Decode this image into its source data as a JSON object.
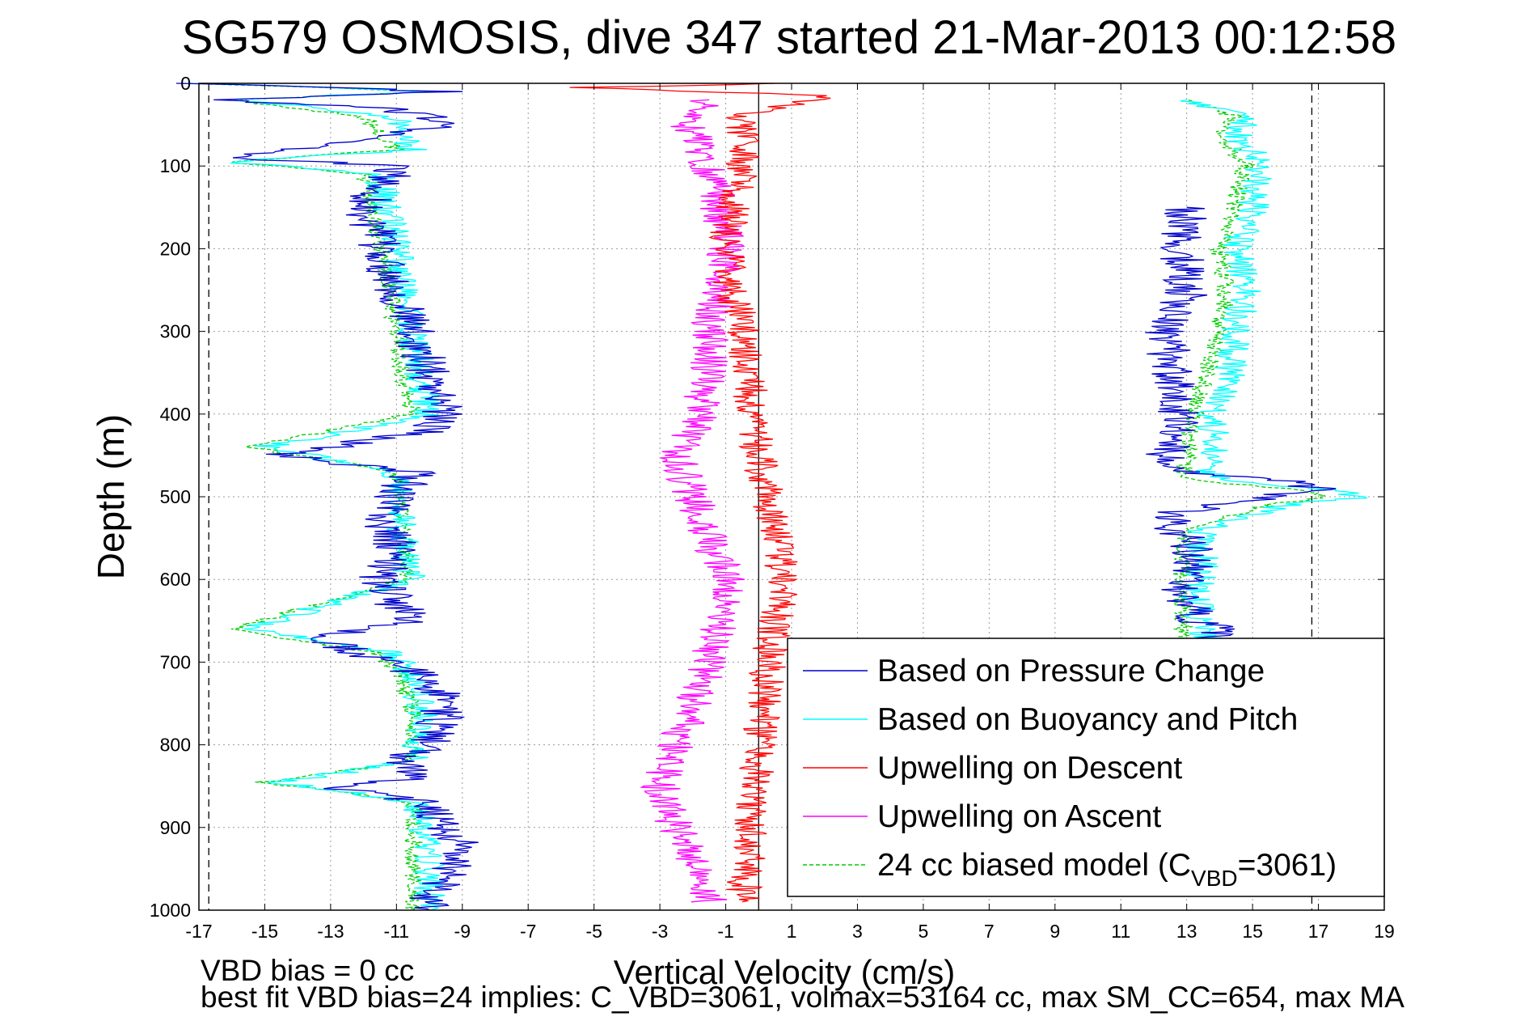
{
  "chart_data": {
    "type": "line",
    "title": "SG579 OSMOSIS, dive 347 started 21-Mar-2013 00:12:58",
    "xlabel": "Vertical Velocity (cm/s)",
    "ylabel": "Depth (m)",
    "xlim": [
      -17,
      19
    ],
    "ylim": [
      1000,
      0
    ],
    "xticks": [
      -17,
      -15,
      -13,
      -11,
      -9,
      -7,
      -5,
      -3,
      -1,
      1,
      3,
      5,
      7,
      9,
      11,
      13,
      15,
      17,
      19
    ],
    "yticks": [
      0,
      100,
      200,
      300,
      400,
      500,
      600,
      700,
      800,
      900,
      1000
    ],
    "grid": true,
    "legend_position": "bottom-right",
    "reference_lines": [
      {
        "x": -16.7,
        "style": "dashed",
        "color": "#000000"
      },
      {
        "x": 16.8,
        "style": "dashed",
        "color": "#000000"
      },
      {
        "x": 0,
        "style": "solid",
        "color": "#000000"
      }
    ],
    "series": [
      {
        "name": "Based on Pressure Change",
        "color": "#0000cc",
        "style": "solid",
        "x_descent": [
          -17,
          -9.5,
          -16.5,
          -11.5,
          -9,
          -16,
          -11,
          -12,
          -11.5,
          -11,
          -10.5,
          -10,
          -9.5,
          -10,
          -14.5,
          -10.5,
          -11,
          -11.5,
          -11,
          -11.5,
          -11,
          -10.5,
          -13.5,
          -12,
          -10,
          -9.5,
          -10,
          -11,
          -10,
          -13,
          -10,
          -9.5,
          -9,
          -9.5,
          -10,
          -10
        ],
        "y_descent": [
          0,
          10,
          20,
          30,
          50,
          90,
          100,
          150,
          200,
          250,
          300,
          350,
          400,
          420,
          450,
          470,
          500,
          530,
          560,
          600,
          630,
          650,
          670,
          690,
          720,
          750,
          800,
          820,
          840,
          850,
          870,
          900,
          930,
          960,
          990,
          1000
        ],
        "x_ascent": [
          13,
          13.5,
          14,
          13,
          13.5,
          12.8,
          13,
          13.3,
          13.1,
          12.7,
          12.4,
          14,
          15.5,
          17,
          16,
          13,
          12.3,
          12.8,
          12.5,
          12.4,
          13,
          12.8,
          13
        ],
        "y_ascent": [
          700,
          680,
          660,
          650,
          640,
          620,
          600,
          580,
          560,
          540,
          520,
          510,
          500,
          490,
          480,
          470,
          450,
          400,
          350,
          300,
          250,
          200,
          150
        ]
      },
      {
        "name": "Based on Buoyancy and Pitch",
        "color": "#00ffff",
        "style": "solid",
        "x_descent": [
          -17,
          -10,
          -16,
          -11,
          -10.5,
          -16,
          -11.5,
          -11.3,
          -11,
          -10.8,
          -10.5,
          -10.3,
          -10,
          -15,
          -11,
          -11,
          -10.8,
          -10.6,
          -15.5,
          -11,
          -10.5,
          -10.2,
          -10.5,
          -14.5,
          -10.5,
          -10,
          -10
        ],
        "y_descent": [
          0,
          10,
          20,
          40,
          80,
          95,
          110,
          150,
          200,
          250,
          300,
          350,
          400,
          440,
          470,
          500,
          550,
          600,
          660,
          690,
          720,
          760,
          820,
          845,
          870,
          930,
          1000
        ],
        "x_ascent": [
          13.5,
          13.7,
          13.5,
          13.3,
          13.5,
          13.4,
          16,
          18.3,
          17,
          14,
          13.6,
          13.8,
          13.8,
          14.3,
          14.5,
          14.8,
          14.5,
          15,
          15.3,
          14.5,
          15,
          13
        ],
        "y_ascent": [
          700,
          680,
          660,
          620,
          580,
          540,
          510,
          500,
          490,
          480,
          470,
          450,
          400,
          350,
          300,
          250,
          200,
          150,
          100,
          60,
          40,
          20
        ]
      },
      {
        "name": "Upwelling on Descent",
        "color": "#ff0000",
        "style": "solid",
        "x_descent": [
          1,
          -5.5,
          2,
          -0.5,
          -0.5,
          -0.8,
          -1,
          -0.8,
          -0.5,
          -0.3,
          -0.2,
          0,
          0.3,
          0.5,
          0.8,
          0.5,
          0.3,
          0,
          -0.2,
          -0.5
        ],
        "y_descent": [
          0,
          5,
          15,
          40,
          100,
          150,
          200,
          250,
          300,
          350,
          400,
          450,
          500,
          550,
          600,
          650,
          700,
          800,
          900,
          990
        ]
      },
      {
        "name": "Upwelling on Ascent",
        "color": "#ff00ff",
        "style": "solid",
        "x_ascent": [
          -1.5,
          -2,
          -2.5,
          -3,
          -2.5,
          -2,
          -1.5,
          -1.2,
          -1,
          -1.5,
          -2,
          -2.5,
          -1.8,
          -1.5,
          -1.5,
          -1.2,
          -1,
          -1.2,
          -1.5,
          -1.8,
          -2,
          -2.2,
          -1.8,
          -1.5
        ],
        "y_ascent": [
          990,
          950,
          900,
          850,
          800,
          750,
          700,
          650,
          600,
          550,
          500,
          450,
          400,
          350,
          300,
          250,
          200,
          150,
          100,
          80,
          60,
          40,
          30,
          20
        ]
      },
      {
        "name": "24 cc biased model (C_VBD=3061)",
        "color": "#00cc00",
        "style": "dashed",
        "x_descent": [
          -17,
          -10,
          -16,
          -12,
          -11,
          -16,
          -12,
          -11.7,
          -11.5,
          -11.2,
          -11,
          -10.8,
          -10.5,
          -15.5,
          -11,
          -10.8,
          -10.8,
          -10.7,
          -16,
          -11.5,
          -10.8,
          -10.5,
          -10.5,
          -15,
          -10.5,
          -10.5,
          -10.5
        ],
        "y_descent": [
          0,
          10,
          20,
          40,
          80,
          95,
          110,
          150,
          200,
          250,
          300,
          350,
          400,
          440,
          470,
          500,
          550,
          600,
          660,
          690,
          720,
          760,
          820,
          845,
          870,
          930,
          1000
        ],
        "x_ascent": [
          12.8,
          13,
          12.9,
          12.8,
          12.9,
          13,
          15.5,
          17.2,
          16,
          13.2,
          12.9,
          13,
          13.2,
          13.6,
          14,
          14.2,
          14,
          14.4,
          14.8,
          14,
          14.5,
          13
        ],
        "y_ascent": [
          700,
          680,
          660,
          620,
          580,
          540,
          510,
          500,
          490,
          480,
          470,
          450,
          400,
          350,
          300,
          250,
          200,
          150,
          100,
          60,
          40,
          20
        ]
      }
    ],
    "legend": [
      {
        "label": "Based on Pressure Change",
        "color": "#0000cc",
        "style": "solid"
      },
      {
        "label": "Based on Buoyancy and Pitch",
        "color": "#00ffff",
        "style": "solid"
      },
      {
        "label": "Upwelling on Descent",
        "color": "#ff0000",
        "style": "solid"
      },
      {
        "label": "Upwelling on Ascent",
        "color": "#ff00ff",
        "style": "solid"
      },
      {
        "label_main": "24 cc biased model (C",
        "label_sub": "VBD",
        "label_tail": "=3061)",
        "color": "#00cc00",
        "style": "dashed"
      }
    ],
    "footnote_1": "VBD bias = 0 cc",
    "footnote_2": "best fit VBD bias=24 implies: C_VBD=3061, volmax=53164 cc, max SM_CC=654, max MA"
  }
}
